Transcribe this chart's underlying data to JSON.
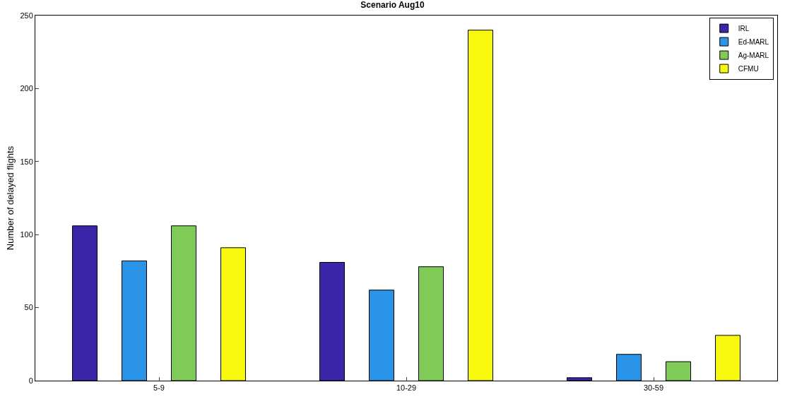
{
  "chart_data": {
    "type": "bar",
    "title": "Scenario Aug10",
    "ylabel": "Number of delayed flights",
    "categories": [
      "5-9",
      "10-29",
      "30-59"
    ],
    "series": [
      {
        "name": "IRL",
        "color": "#3a26a8",
        "values": [
          106,
          81,
          2
        ]
      },
      {
        "name": "Ed-MARL",
        "color": "#2a94e8",
        "values": [
          82,
          62,
          18
        ]
      },
      {
        "name": "Ag-MARL",
        "color": "#80cb58",
        "values": [
          106,
          78,
          13
        ]
      },
      {
        "name": "CFMU",
        "color": "#f8f80f",
        "values": [
          91,
          240,
          31
        ]
      }
    ],
    "ylim": [
      0,
      250
    ],
    "yticks": [
      0,
      50,
      100,
      150,
      200,
      250
    ],
    "legend": "top right"
  }
}
